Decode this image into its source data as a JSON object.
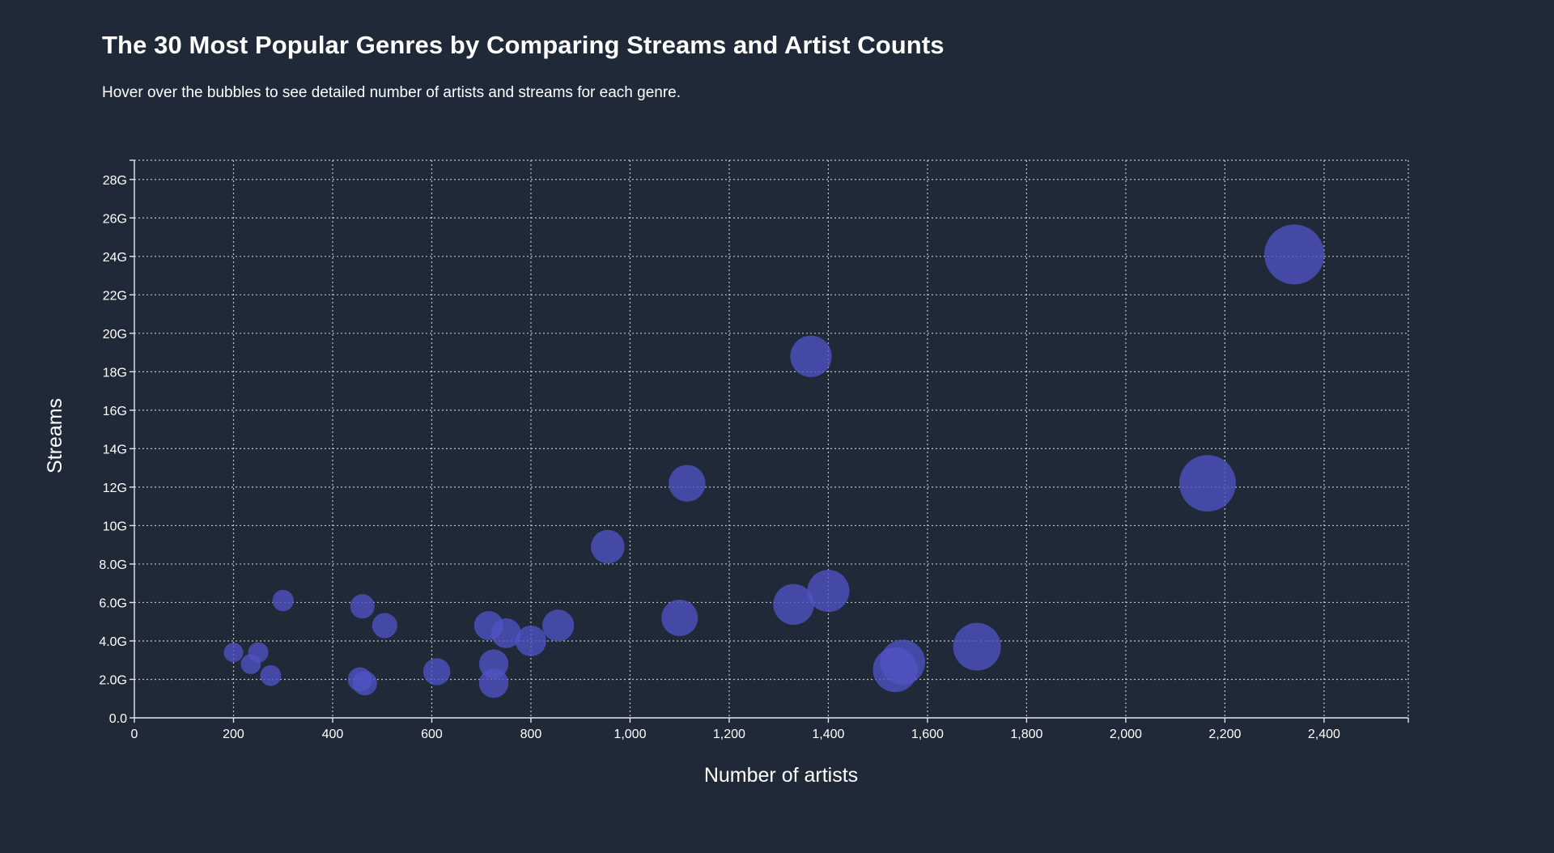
{
  "header": {
    "title": "The 30 Most Popular Genres by Comparing Streams and Artist Counts",
    "subtitle": "Hover over the bubbles to see detailed number of artists and streams for each genre."
  },
  "chart_data": {
    "type": "scatter",
    "variant": "bubble",
    "xlabel": "Number of artists",
    "ylabel": "Streams",
    "xlim": [
      0,
      2570
    ],
    "ylim": [
      0,
      29000000000
    ],
    "x_ticks": [
      0,
      200,
      400,
      600,
      800,
      1000,
      1200,
      1400,
      1600,
      1800,
      2000,
      2200,
      2400
    ],
    "x_tick_labels": [
      "0",
      "200",
      "400",
      "600",
      "800",
      "1,000",
      "1,200",
      "1,400",
      "1,600",
      "1,800",
      "2,000",
      "2,200",
      "2,400"
    ],
    "y_ticks": [
      0,
      2000000000,
      4000000000,
      6000000000,
      8000000000,
      10000000000,
      12000000000,
      14000000000,
      16000000000,
      18000000000,
      20000000000,
      22000000000,
      24000000000,
      26000000000,
      28000000000
    ],
    "y_tick_labels": [
      "0.0",
      "2.0G",
      "4.0G",
      "6.0G",
      "8.0G",
      "10G",
      "12G",
      "14G",
      "16G",
      "18G",
      "20G",
      "22G",
      "24G",
      "26G",
      "28G"
    ],
    "grid": true,
    "bubble_color": "#4f52c4",
    "background_color": "#1f2937",
    "points": [
      {
        "x": 2340,
        "y": 24100000000
      },
      {
        "x": 1365,
        "y": 18800000000
      },
      {
        "x": 2165,
        "y": 12200000000
      },
      {
        "x": 1115,
        "y": 12200000000
      },
      {
        "x": 955,
        "y": 8900000000
      },
      {
        "x": 1400,
        "y": 6600000000
      },
      {
        "x": 1330,
        "y": 5900000000
      },
      {
        "x": 1100,
        "y": 5200000000
      },
      {
        "x": 1700,
        "y": 3700000000
      },
      {
        "x": 1550,
        "y": 2900000000
      },
      {
        "x": 1535,
        "y": 2500000000
      },
      {
        "x": 855,
        "y": 4800000000
      },
      {
        "x": 800,
        "y": 4000000000
      },
      {
        "x": 750,
        "y": 4400000000
      },
      {
        "x": 715,
        "y": 4800000000
      },
      {
        "x": 725,
        "y": 2800000000
      },
      {
        "x": 725,
        "y": 1800000000
      },
      {
        "x": 610,
        "y": 2400000000
      },
      {
        "x": 505,
        "y": 4800000000
      },
      {
        "x": 460,
        "y": 5800000000
      },
      {
        "x": 455,
        "y": 2000000000
      },
      {
        "x": 465,
        "y": 1800000000
      },
      {
        "x": 300,
        "y": 6100000000
      },
      {
        "x": 200,
        "y": 3400000000
      },
      {
        "x": 250,
        "y": 3400000000
      },
      {
        "x": 235,
        "y": 2800000000
      },
      {
        "x": 275,
        "y": 2200000000
      }
    ]
  }
}
